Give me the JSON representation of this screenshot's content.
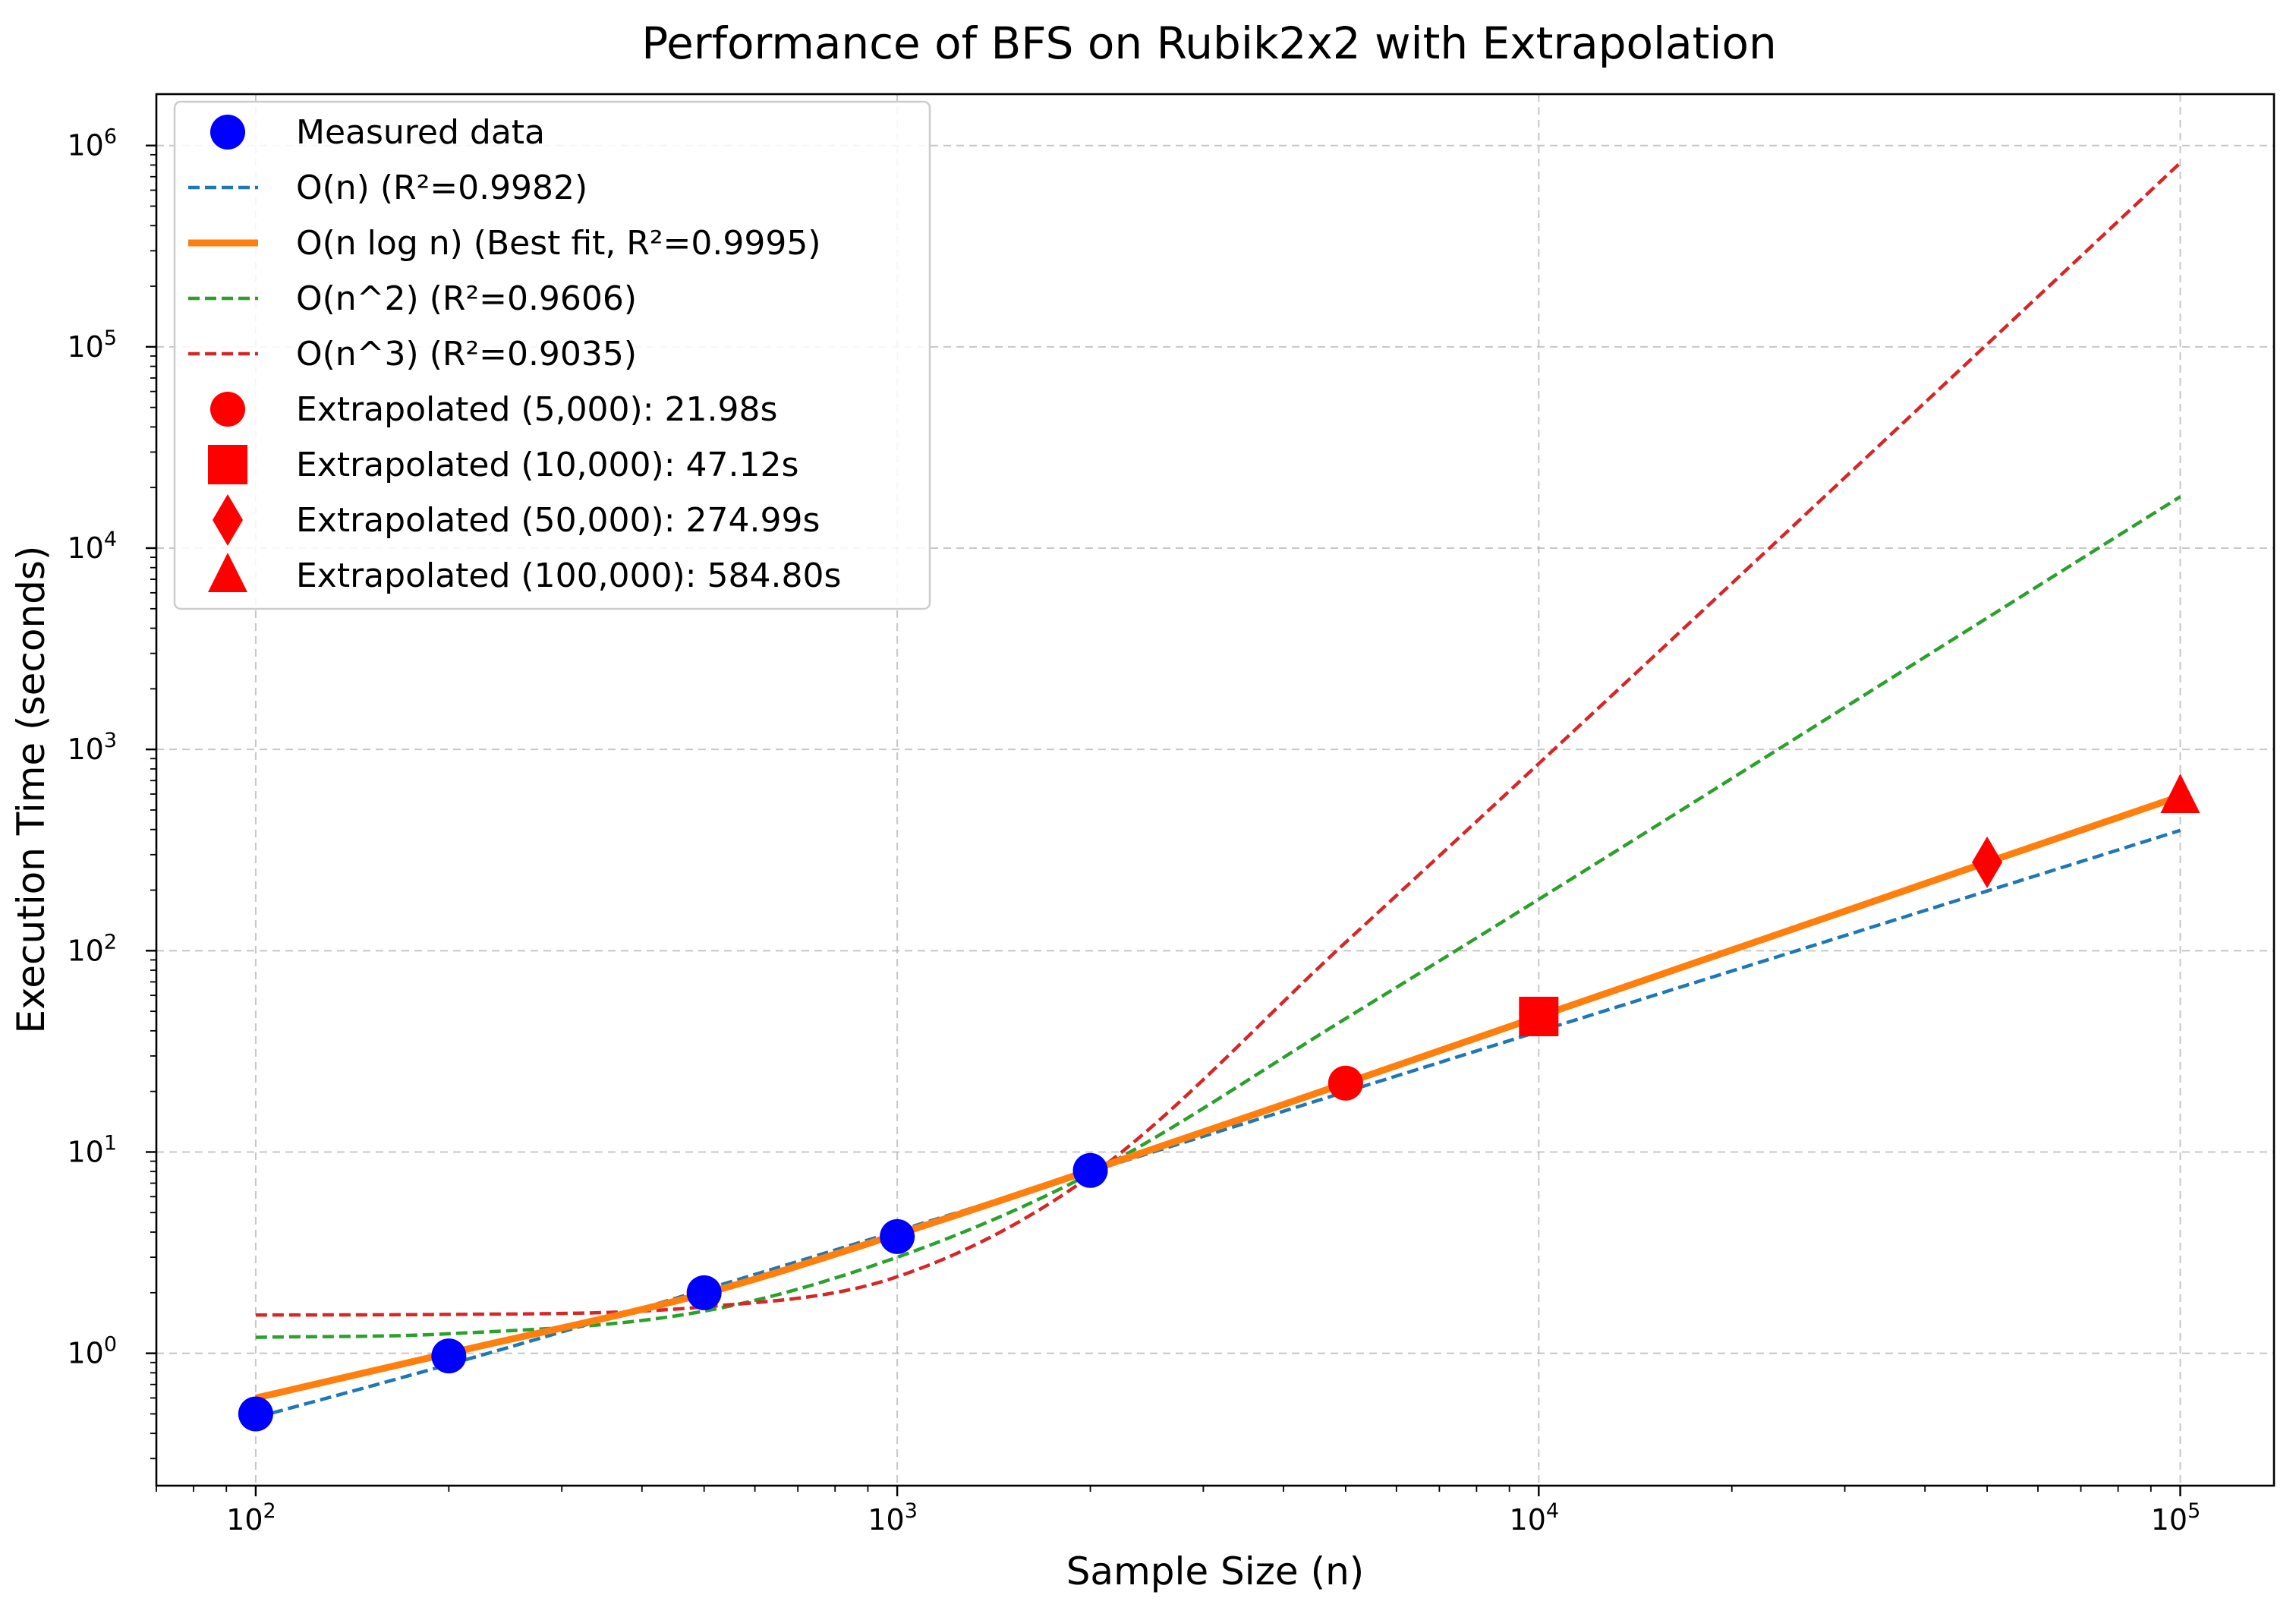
{
  "chart_data": {
    "type": "line",
    "title": "Performance of BFS on Rubik2x2 with Extrapolation",
    "xlabel": "Sample Size (n)",
    "ylabel": "Execution Time (seconds)",
    "xscale": "log",
    "yscale": "log",
    "xlim": [
      70,
      140000
    ],
    "ylim": [
      0.22,
      1800000
    ],
    "grid": true,
    "legend_position": "top-left",
    "x_ticks": [
      {
        "base": "10",
        "exp": "2",
        "value": 100
      },
      {
        "base": "10",
        "exp": "3",
        "value": 1000
      },
      {
        "base": "10",
        "exp": "4",
        "value": 10000
      },
      {
        "base": "10",
        "exp": "5",
        "value": 100000
      }
    ],
    "y_ticks": [
      {
        "base": "10",
        "exp": "0",
        "value": 1
      },
      {
        "base": "10",
        "exp": "1",
        "value": 10
      },
      {
        "base": "10",
        "exp": "2",
        "value": 100
      },
      {
        "base": "10",
        "exp": "3",
        "value": 1000
      },
      {
        "base": "10",
        "exp": "4",
        "value": 10000
      },
      {
        "base": "10",
        "exp": "5",
        "value": 100000
      },
      {
        "base": "10",
        "exp": "6",
        "value": 1000000
      }
    ],
    "series": [
      {
        "name": "Measured data",
        "kind": "scatter",
        "color": "#0000ff",
        "marker": "circle",
        "x": [
          100,
          200,
          500,
          1000,
          2000
        ],
        "y": [
          0.5,
          0.97,
          2.0,
          3.8,
          8.1
        ]
      },
      {
        "name": "O(n) (R²=0.9982)",
        "kind": "line",
        "style": "dashed",
        "color": "#1f77b4",
        "x": [
          100,
          200,
          500,
          1000,
          2000,
          5000,
          10000,
          50000,
          100000
        ],
        "y": [
          0.48,
          0.88,
          2.07,
          4.05,
          8.0,
          19.9,
          39.7,
          198,
          396
        ]
      },
      {
        "name": "O(n log n) (Best fit, R²=0.9995)",
        "kind": "line",
        "style": "solid",
        "color": "#ff7f0e",
        "x": [
          100,
          200,
          500,
          1000,
          2000,
          5000,
          10000,
          50000,
          100000
        ],
        "y": [
          0.6,
          1.0,
          1.98,
          3.9,
          8.1,
          21.98,
          47.12,
          274.99,
          584.8
        ]
      },
      {
        "name": "O(n^2) (R²=0.9606)",
        "kind": "line",
        "style": "dashed",
        "color": "#2ca02c",
        "x": [
          100,
          200,
          500,
          1000,
          2000,
          5000,
          10000,
          50000,
          100000
        ],
        "y": [
          1.2,
          1.25,
          1.62,
          3.0,
          7.8,
          46,
          180,
          4500,
          18000
        ]
      },
      {
        "name": "O(n^3) (R²=0.9035)",
        "kind": "line",
        "style": "dashed",
        "color": "#d62728",
        "x": [
          100,
          200,
          500,
          1000,
          2000,
          5000,
          10000,
          50000,
          100000
        ],
        "y": [
          1.55,
          1.56,
          1.7,
          2.4,
          7.6,
          110,
          850,
          103000,
          820000
        ]
      },
      {
        "name": "Extrapolated (5,000): 21.98s",
        "kind": "point",
        "color": "#ff0000",
        "marker": "circle",
        "x": [
          5000
        ],
        "y": [
          21.98
        ]
      },
      {
        "name": "Extrapolated (10,000): 47.12s",
        "kind": "point",
        "color": "#ff0000",
        "marker": "square",
        "x": [
          10000
        ],
        "y": [
          47.12
        ]
      },
      {
        "name": "Extrapolated (50,000): 274.99s",
        "kind": "point",
        "color": "#ff0000",
        "marker": "diamond",
        "x": [
          50000
        ],
        "y": [
          274.99
        ]
      },
      {
        "name": "Extrapolated (100,000): 584.80s",
        "kind": "point",
        "color": "#ff0000",
        "marker": "triangle",
        "x": [
          100000
        ],
        "y": [
          584.8
        ]
      }
    ]
  }
}
